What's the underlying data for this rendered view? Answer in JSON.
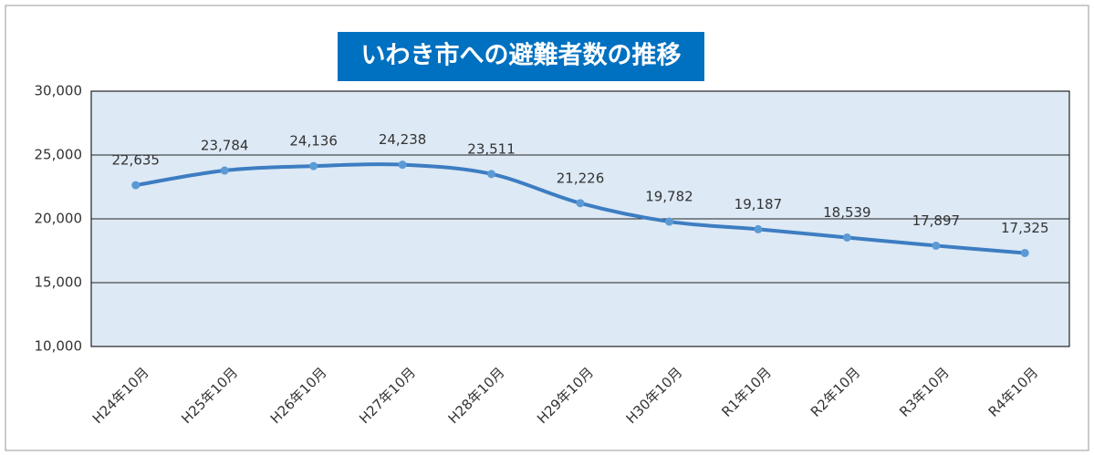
{
  "chart_data": {
    "type": "line",
    "title": "いわき市への避難者数の推移",
    "categories": [
      "H24年10月",
      "H25年10月",
      "H26年10月",
      "H27年10月",
      "H28年10月",
      "H29年10月",
      "H30年10月",
      "R1年10月",
      "R2年10月",
      "R3年10月",
      "R4年10月"
    ],
    "series": [
      {
        "name": "避難者数",
        "color": "#3d7dc2",
        "values": [
          22635,
          23784,
          24136,
          24238,
          23511,
          21226,
          19782,
          19187,
          18539,
          17897,
          17325
        ],
        "value_labels": [
          "22,635",
          "23,784",
          "24,136",
          "24,238",
          "23,511",
          "21,226",
          "19,782",
          "19,187",
          "18,539",
          "17,897",
          "17,325"
        ]
      }
    ],
    "ylim": [
      10000,
      30000
    ],
    "yticks": [
      {
        "value": 10000,
        "label": "10,000"
      },
      {
        "value": 15000,
        "label": "15,000"
      },
      {
        "value": 20000,
        "label": "20,000"
      },
      {
        "value": 25000,
        "label": "25,000"
      },
      {
        "value": 30000,
        "label": "30,000"
      }
    ],
    "grid": true
  }
}
